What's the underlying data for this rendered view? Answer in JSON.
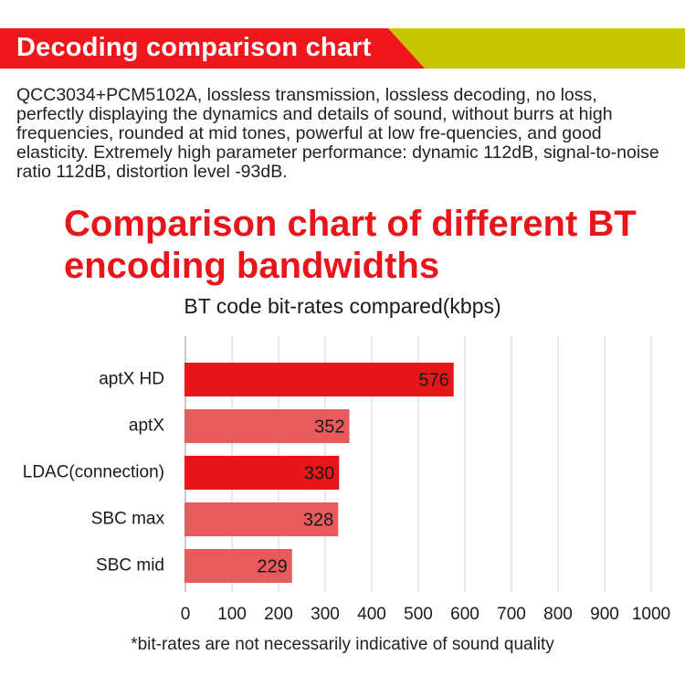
{
  "header": {
    "banner_title": "Decoding comparison chart"
  },
  "intro_text": "QCC3034+PCM5102A, lossless transmission, lossless decoding, no loss, perfectly displaying the dynamics and details of sound, without burrs at high frequencies, rounded at mid tones, powerful at low fre-quencies, and good elasticity. Extremely high parameter performance: dynamic 112dB, signal-to-noise ratio 112dB, distortion level -93dB.",
  "main_title": "Comparison chart of different BT encoding bandwidths",
  "footnote": "*bit-rates are not necessarily indicative of sound quality",
  "colors": {
    "banner_red": "#f0161b",
    "banner_olive": "#c9c400",
    "title_red": "#e8161b",
    "bar_dark": "#e8161b",
    "bar_light": "#e85a5c"
  },
  "chart_data": {
    "type": "bar",
    "orientation": "horizontal",
    "title": "BT code bit-rates compared(kbps)",
    "categories": [
      "aptX HD",
      "aptX",
      "LDAC(connection)",
      "SBC max",
      "SBC mid"
    ],
    "values": [
      576,
      352,
      330,
      328,
      229
    ],
    "xlim": [
      0,
      1000
    ],
    "x_ticks": [
      0,
      100,
      200,
      300,
      400,
      500,
      600,
      700,
      800,
      900,
      1000
    ],
    "grid": true,
    "bar_colors": [
      "#e8161b",
      "#e85a5c",
      "#e8161b",
      "#e85a5c",
      "#e85a5c"
    ]
  }
}
